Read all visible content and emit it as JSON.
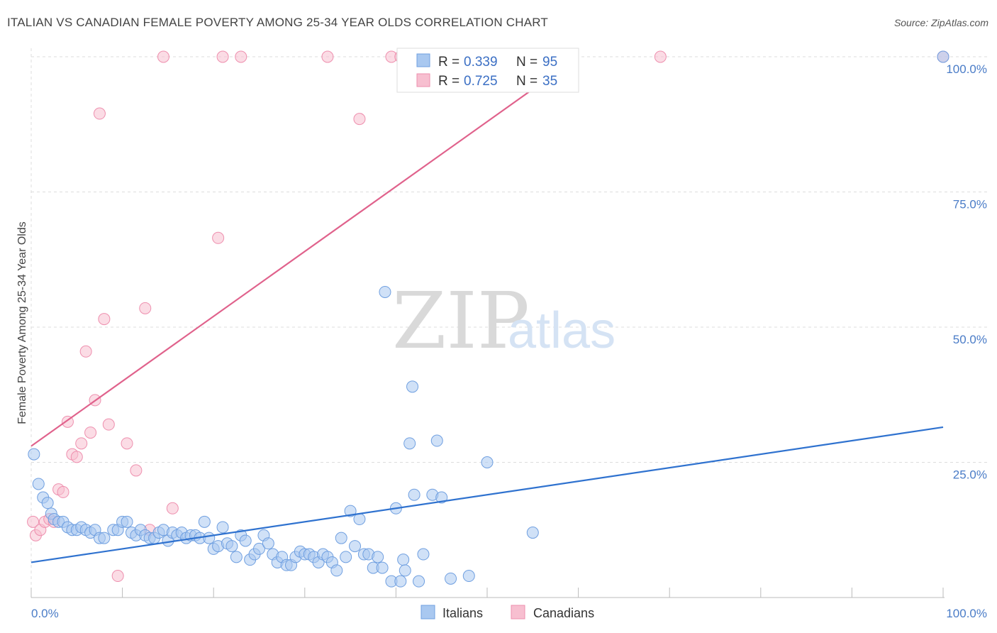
{
  "title": "ITALIAN VS CANADIAN FEMALE POVERTY AMONG 25-34 YEAR OLDS CORRELATION CHART",
  "source": "Source: ZipAtlas.com",
  "watermark": {
    "zip": "ZIP",
    "atlas": "atlas"
  },
  "colors": {
    "italians_fill": "#a9c8f0",
    "italians_stroke": "#6f9fe0",
    "italians_line": "#2f72cf",
    "canadians_fill": "#f7bfd0",
    "canadians_stroke": "#ee8fae",
    "canadians_line": "#e0628c",
    "grid": "#dddddd",
    "tick_label": "#4a7cc7"
  },
  "legend": {
    "italians": {
      "r_label": "R =",
      "r_value": "0.339",
      "n_label": "N =",
      "n_value": "95"
    },
    "canadians": {
      "r_label": "R =",
      "r_value": "0.725",
      "n_label": "N =",
      "n_value": "35"
    }
  },
  "bottom_legend": {
    "italians": "Italians",
    "canadians": "Canadians"
  },
  "chart_data": {
    "type": "scatter",
    "xlabel": "",
    "ylabel": "Female Poverty Among 25-34 Year Olds",
    "xlim": [
      0,
      100
    ],
    "ylim": [
      0,
      100
    ],
    "x_tick_labels": {
      "min": "0.0%",
      "max": "100.0%"
    },
    "y_tick_labels": [
      "25.0%",
      "50.0%",
      "75.0%",
      "100.0%"
    ],
    "y_ticks": [
      25,
      50,
      75,
      100
    ],
    "grid": true,
    "legend_position": "top-center",
    "series": [
      {
        "name": "Italians",
        "r": 0.339,
        "n": 95,
        "trend": {
          "x0": 0,
          "y0": 6.5,
          "x1": 100,
          "y1": 31.5
        },
        "points": [
          [
            0.3,
            26.5
          ],
          [
            0.8,
            21
          ],
          [
            1.3,
            18.5
          ],
          [
            1.8,
            17.5
          ],
          [
            2.2,
            15.5
          ],
          [
            2.5,
            14.5
          ],
          [
            3.0,
            14
          ],
          [
            3.5,
            14
          ],
          [
            4.0,
            13
          ],
          [
            4.5,
            12.5
          ],
          [
            5.0,
            12.5
          ],
          [
            5.5,
            13
          ],
          [
            6.0,
            12.5
          ],
          [
            6.5,
            12
          ],
          [
            7.0,
            12.5
          ],
          [
            7.5,
            11
          ],
          [
            8.0,
            11
          ],
          [
            9.0,
            12.5
          ],
          [
            9.5,
            12.5
          ],
          [
            10.0,
            14
          ],
          [
            10.5,
            14
          ],
          [
            11.0,
            12
          ],
          [
            11.5,
            11.5
          ],
          [
            12.0,
            12.5
          ],
          [
            12.5,
            11.5
          ],
          [
            13.0,
            11
          ],
          [
            13.5,
            11
          ],
          [
            14.0,
            12
          ],
          [
            14.5,
            12.5
          ],
          [
            15.0,
            10.5
          ],
          [
            15.5,
            12
          ],
          [
            16.0,
            11.5
          ],
          [
            16.5,
            12
          ],
          [
            17.0,
            11
          ],
          [
            17.5,
            11.5
          ],
          [
            18.0,
            11.5
          ],
          [
            18.5,
            11
          ],
          [
            19.0,
            14
          ],
          [
            19.5,
            11
          ],
          [
            20.0,
            9
          ],
          [
            20.5,
            9.5
          ],
          [
            21.0,
            13
          ],
          [
            21.5,
            10
          ],
          [
            22.0,
            9.5
          ],
          [
            22.5,
            7.5
          ],
          [
            23.0,
            11.5
          ],
          [
            23.5,
            10.5
          ],
          [
            24.0,
            7
          ],
          [
            24.5,
            8
          ],
          [
            25.0,
            9
          ],
          [
            25.5,
            11.5
          ],
          [
            26.0,
            10
          ],
          [
            26.5,
            8
          ],
          [
            27.0,
            6.5
          ],
          [
            27.5,
            7.5
          ],
          [
            28.0,
            6
          ],
          [
            28.5,
            6
          ],
          [
            29.0,
            7.5
          ],
          [
            29.5,
            8.5
          ],
          [
            30.0,
            8
          ],
          [
            30.5,
            8
          ],
          [
            31.0,
            7.5
          ],
          [
            31.5,
            6.5
          ],
          [
            32.0,
            8
          ],
          [
            32.5,
            7.5
          ],
          [
            33.0,
            6.5
          ],
          [
            33.5,
            5
          ],
          [
            34.0,
            11
          ],
          [
            34.5,
            7.5
          ],
          [
            35.0,
            16
          ],
          [
            35.5,
            9.5
          ],
          [
            36.0,
            14.5
          ],
          [
            36.5,
            8
          ],
          [
            37.0,
            8
          ],
          [
            37.5,
            5.5
          ],
          [
            38.0,
            7.5
          ],
          [
            38.5,
            5.5
          ],
          [
            38.8,
            56.5
          ],
          [
            39.5,
            3
          ],
          [
            40.0,
            16.5
          ],
          [
            40.5,
            3
          ],
          [
            40.8,
            7
          ],
          [
            41.0,
            5
          ],
          [
            41.5,
            28.5
          ],
          [
            41.8,
            39
          ],
          [
            42.0,
            19
          ],
          [
            42.5,
            3
          ],
          [
            43.0,
            8
          ],
          [
            44.0,
            19
          ],
          [
            44.5,
            29
          ],
          [
            45.0,
            18.5
          ],
          [
            46.0,
            3.5
          ],
          [
            48.0,
            4
          ],
          [
            50.0,
            25
          ],
          [
            55.0,
            12
          ],
          [
            100.0,
            100
          ]
        ]
      },
      {
        "name": "Canadians",
        "r": 0.725,
        "n": 35,
        "trend": {
          "x0": 0,
          "y0": 28,
          "x1": 60,
          "y1": 100
        },
        "points": [
          [
            0.2,
            14
          ],
          [
            0.5,
            11.5
          ],
          [
            1.0,
            12.5
          ],
          [
            1.5,
            14
          ],
          [
            2.0,
            14.5
          ],
          [
            2.5,
            14
          ],
          [
            3.0,
            20
          ],
          [
            3.5,
            19.5
          ],
          [
            4.0,
            32.5
          ],
          [
            4.5,
            26.5
          ],
          [
            5.0,
            26
          ],
          [
            5.5,
            28.5
          ],
          [
            6.0,
            45.5
          ],
          [
            6.5,
            30.5
          ],
          [
            7.0,
            36.5
          ],
          [
            7.5,
            89.5
          ],
          [
            8.0,
            51.5
          ],
          [
            8.5,
            32
          ],
          [
            9.5,
            4
          ],
          [
            10.5,
            28.5
          ],
          [
            11.5,
            23.5
          ],
          [
            12.5,
            53.5
          ],
          [
            13.0,
            12.5
          ],
          [
            14.5,
            100
          ],
          [
            15.5,
            16.5
          ],
          [
            21.0,
            100
          ],
          [
            20.5,
            66.5
          ],
          [
            23.0,
            100
          ],
          [
            32.5,
            100
          ],
          [
            36.0,
            88.5
          ],
          [
            39.5,
            100
          ],
          [
            40.5,
            100
          ],
          [
            55.5,
            100
          ],
          [
            69.0,
            100
          ],
          [
            100.0,
            100
          ]
        ]
      }
    ]
  }
}
